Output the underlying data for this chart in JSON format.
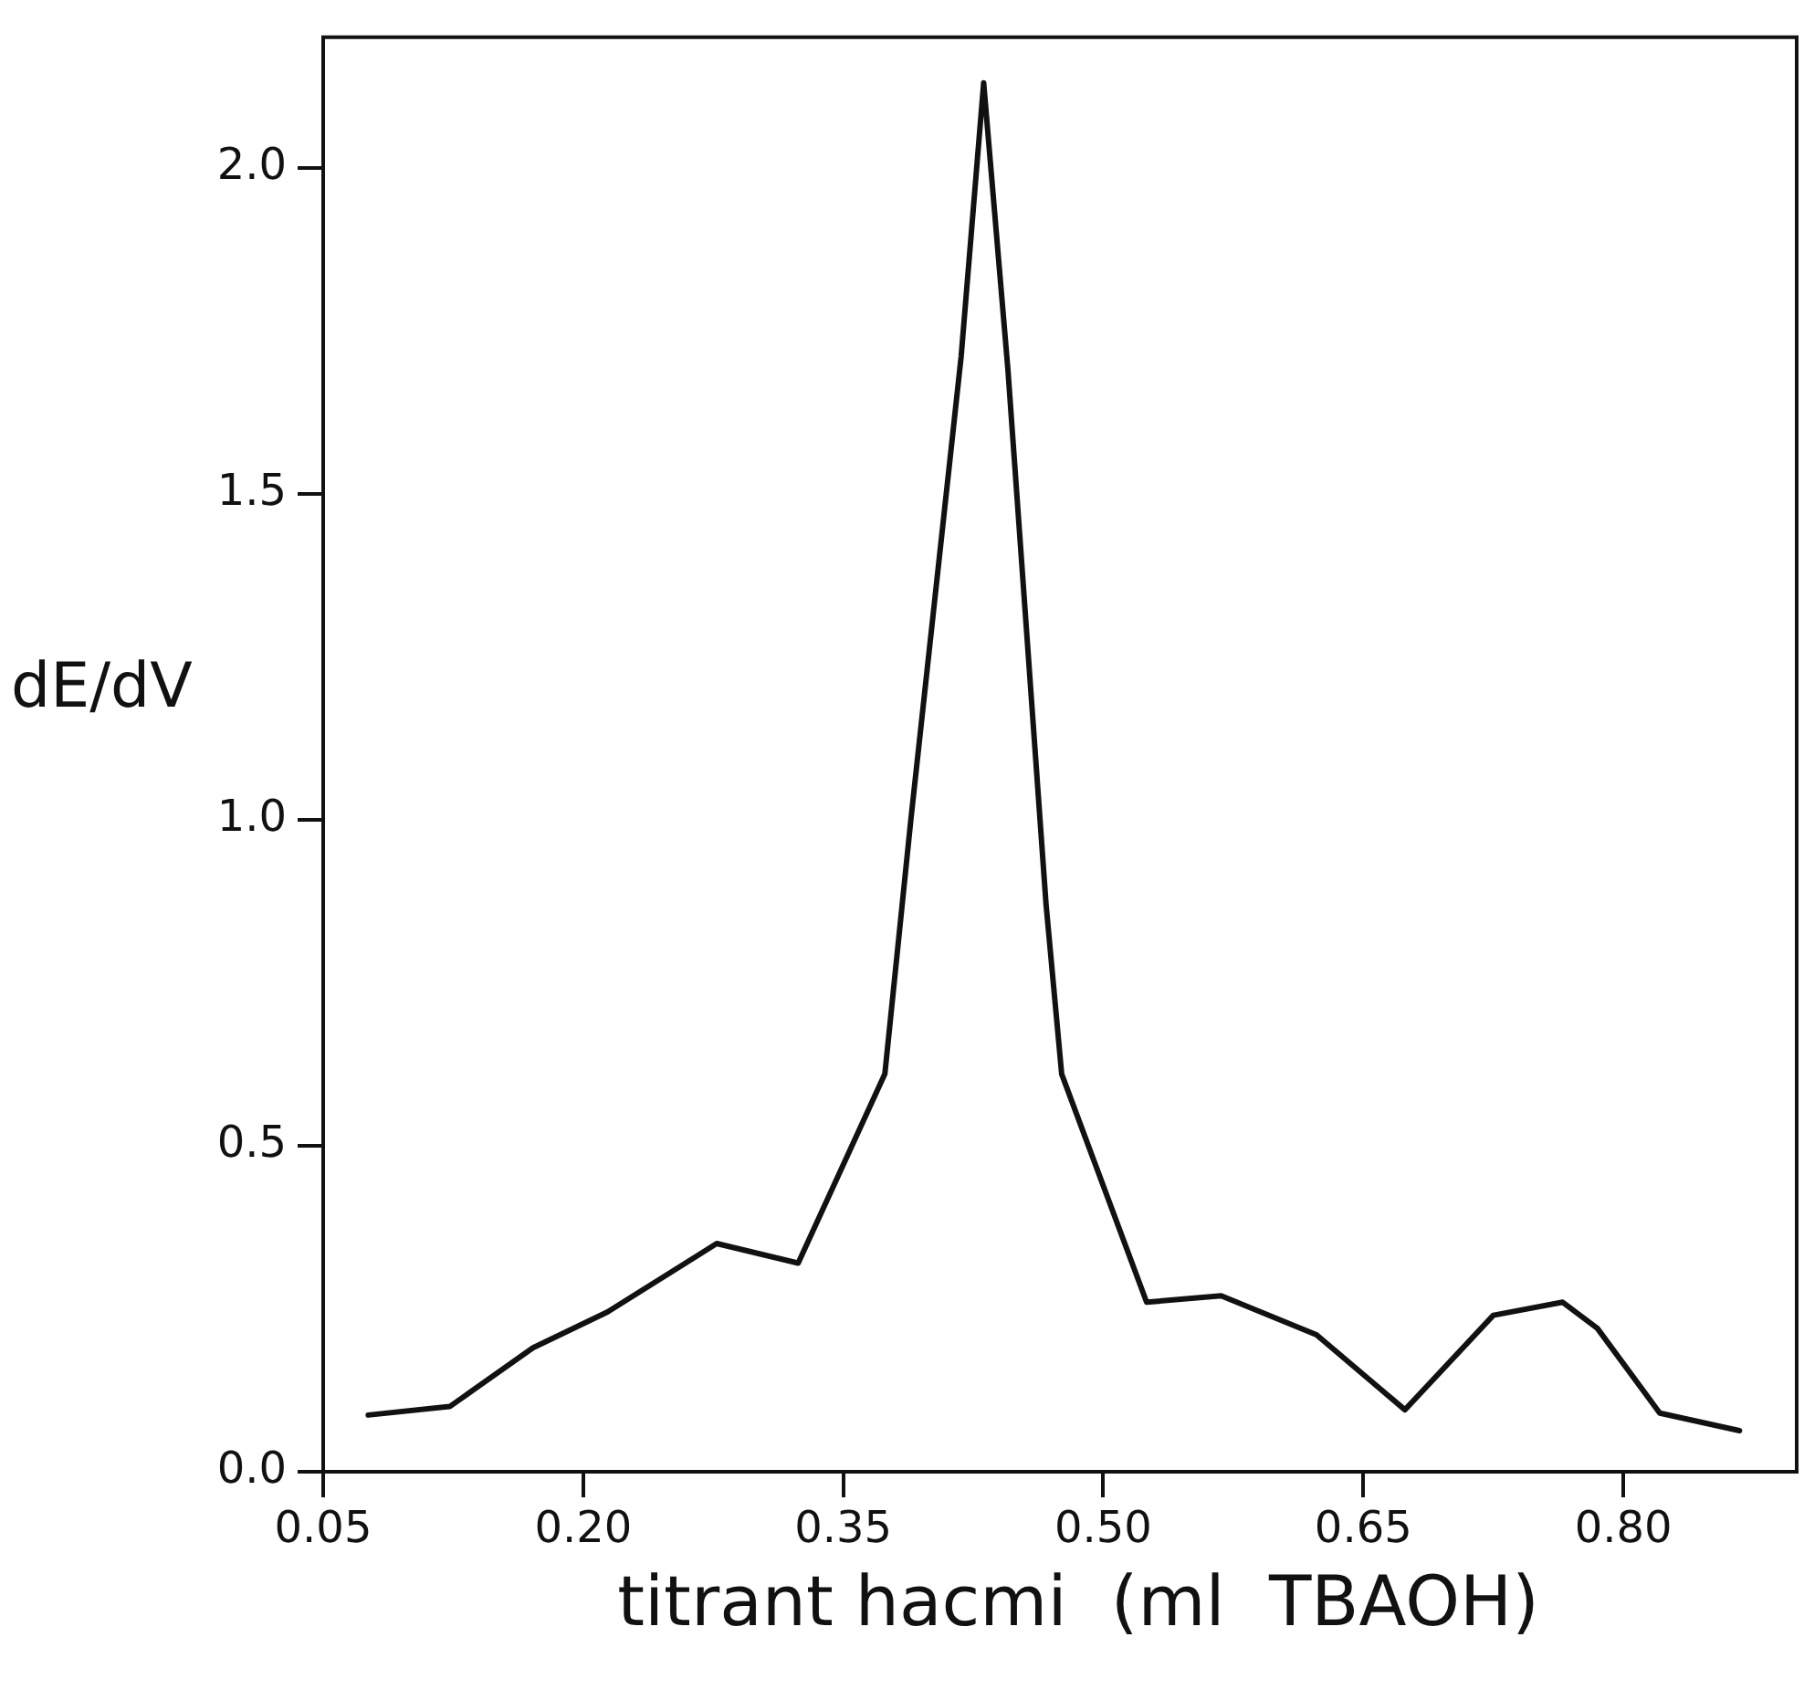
{
  "chart_data": {
    "type": "line",
    "xlabel": "titrant hacmi  (ml  TBAOH)",
    "ylabel": "dE/dV",
    "x": [
      0.076,
      0.123,
      0.171,
      0.214,
      0.277,
      0.324,
      0.374,
      0.389,
      0.418,
      0.431,
      0.445,
      0.467,
      0.476,
      0.525,
      0.568,
      0.623,
      0.674,
      0.725,
      0.765,
      0.785,
      0.821,
      0.867
    ],
    "series": [
      {
        "color": "#111111",
        "values": [
          0.087,
          0.1,
          0.19,
          0.245,
          0.35,
          0.32,
          0.61,
          1.0,
          1.71,
          2.13,
          1.69,
          0.87,
          0.61,
          0.26,
          0.27,
          0.21,
          0.095,
          0.24,
          0.26,
          0.22,
          0.09,
          0.063
        ]
      }
    ],
    "xlim": [
      0.05,
      0.9
    ],
    "ylim": [
      0,
      2.2
    ],
    "xticks": [
      {
        "value": 0.05,
        "label": "0.05"
      },
      {
        "value": 0.2,
        "label": "0.20"
      },
      {
        "value": 0.35,
        "label": "0.35"
      },
      {
        "value": 0.5,
        "label": "0.50"
      },
      {
        "value": 0.65,
        "label": "0.65"
      },
      {
        "value": 0.8,
        "label": "0.80"
      }
    ],
    "yticks": [
      {
        "value": 0,
        "label": "0.0"
      },
      {
        "value": 0.5,
        "label": "0.5"
      },
      {
        "value": 1,
        "label": "1.0"
      },
      {
        "value": 1.5,
        "label": "1.5"
      },
      {
        "value": 2,
        "label": "2.0"
      }
    ],
    "grid": false,
    "legend": false,
    "marker": "none",
    "line_style": "solid"
  }
}
